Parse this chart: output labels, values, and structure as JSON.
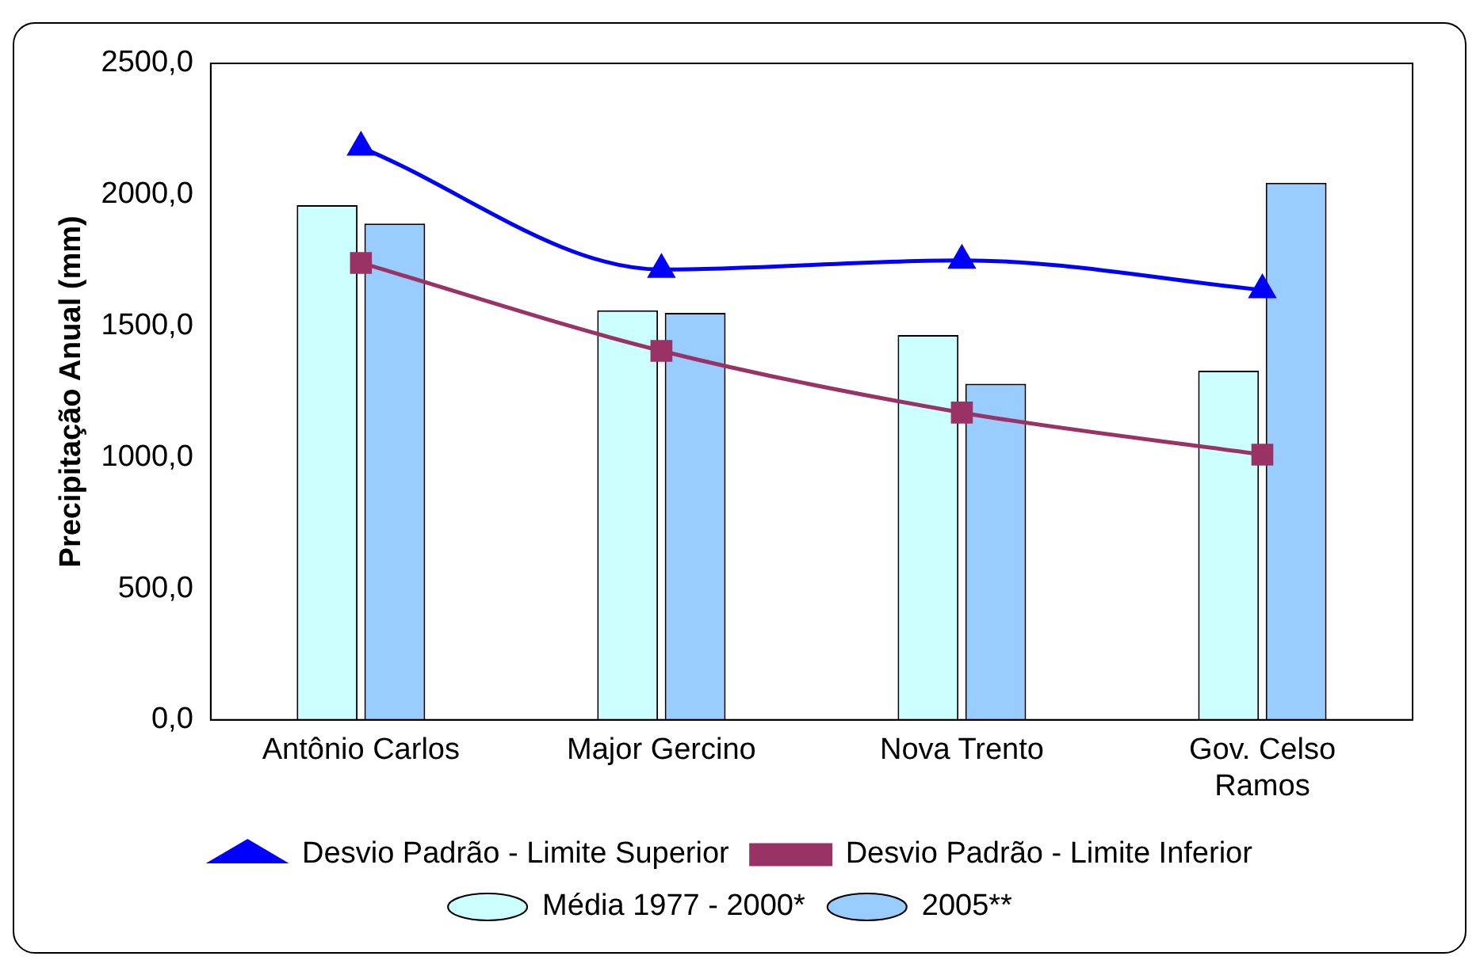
{
  "chart_data": {
    "type": "bar",
    "ylabel": "Precipitação Anual (mm)",
    "categories": [
      "Antônio Carlos",
      "Major Gercino",
      "Nova Trento",
      "Gov. Celso Ramos"
    ],
    "series": [
      {
        "name": "Média 1977 - 2000*",
        "color": "#ccffff",
        "values": [
          1960,
          1560,
          1465,
          1330
        ]
      },
      {
        "name": "2005**",
        "color": "#99ccff",
        "values": [
          1890,
          1550,
          1280,
          2045
        ]
      },
      {
        "name": "Desvio Padrão - Limite Superior",
        "type": "line",
        "marker": "triangle",
        "color": "#0000ff",
        "values": [
          2180,
          1715,
          1750,
          1637
        ]
      },
      {
        "name": "Desvio Padrão - Limite Inferior",
        "type": "line",
        "marker": "square",
        "color": "#993366",
        "values": [
          1740,
          1405,
          1170,
          1010
        ]
      }
    ],
    "ylim": [
      0,
      2500
    ],
    "yticks": [
      {
        "value": 0,
        "label": "0,0"
      },
      {
        "value": 500,
        "label": "500,0"
      },
      {
        "value": 1000,
        "label": "1000,0"
      },
      {
        "value": 1500,
        "label": "1500,0"
      },
      {
        "value": 2000,
        "label": "2000,0"
      },
      {
        "value": 2500,
        "label": "2500,0"
      }
    ],
    "grid": false,
    "legend": "bottom"
  }
}
